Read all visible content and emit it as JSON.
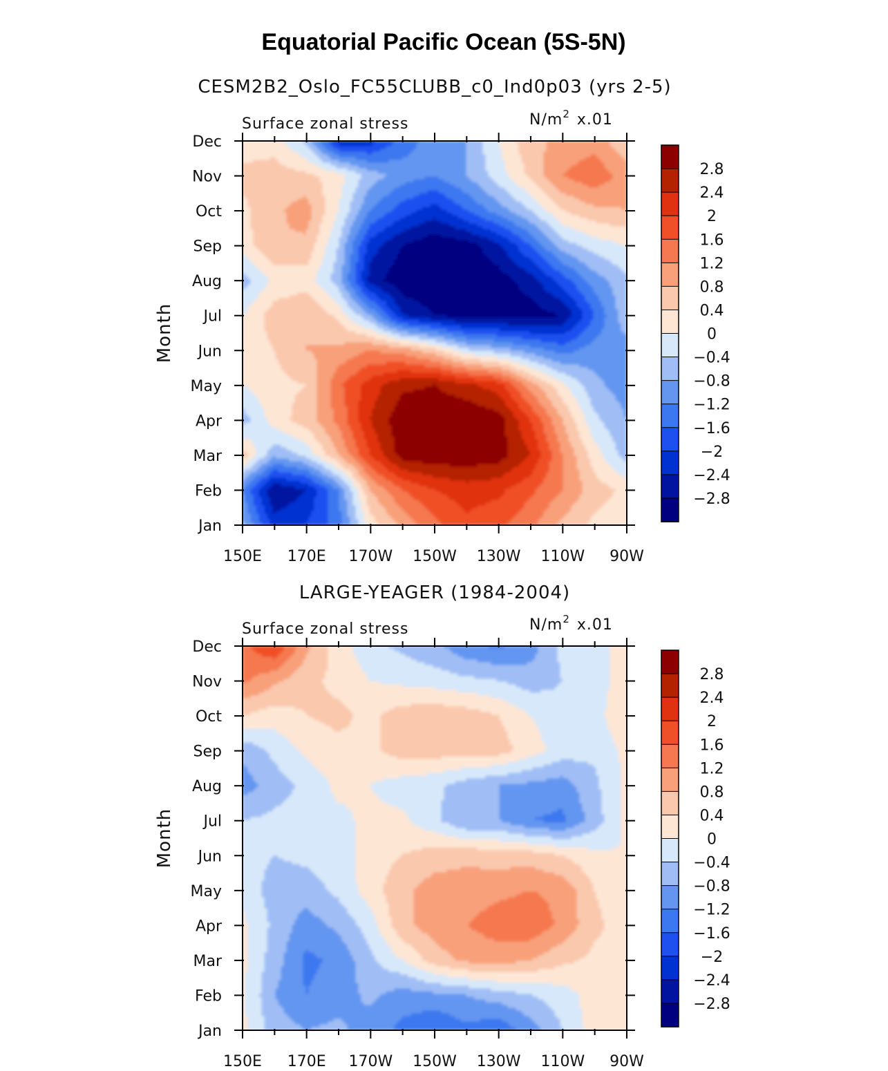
{
  "figure": {
    "title": "Equatorial Pacific Ocean (5S-5N)",
    "colors": [
      "#000080",
      "#0014a0",
      "#0032d2",
      "#1e50f0",
      "#3c78f0",
      "#6496f0",
      "#a0bef5",
      "#d7e8fa",
      "#fde6d4",
      "#fac8ad",
      "#f8a07a",
      "#f57850",
      "#f05028",
      "#e03210",
      "#b42300",
      "#8c0000"
    ],
    "levels": [
      -2.8,
      -2.4,
      -2,
      -1.6,
      -1.2,
      -0.8,
      -0.4,
      0,
      0.4,
      0.8,
      1.2,
      1.6,
      2,
      2.4,
      2.8
    ]
  },
  "chart_data": [
    {
      "type": "heatmap",
      "title": "CESM2B2_Oslo_FC55CLUBB_c0_Ind0p03 (yrs 2-5)",
      "left_label": "Surface zonal stress",
      "units": "N/m",
      "units_sup": "2",
      "units_scale": "x.01",
      "ylabel": "Month",
      "x": [
        "150E",
        "170E",
        "170W",
        "150W",
        "130W",
        "110W",
        "90W"
      ],
      "y": [
        "Jan",
        "Feb",
        "Mar",
        "Apr",
        "May",
        "Jun",
        "Jul",
        "Aug",
        "Sep",
        "Oct",
        "Nov",
        "Dec"
      ],
      "colorbar_labels": [
        "2.8",
        "2.4",
        "2",
        "1.6",
        "1.2",
        "0.8",
        "0.4",
        "0",
        "−0.4",
        "−0.8",
        "−1.2",
        "−1.6",
        "−2",
        "−2.4",
        "−2.8"
      ],
      "values": [
        [
          -0.7,
          -2.2,
          -2.0,
          -1.4,
          0.2,
          0.9,
          1.5,
          1.9,
          1.7,
          1.3,
          0.7,
          0.3,
          0.1
        ],
        [
          -1.2,
          -2.8,
          -2.4,
          -1.2,
          0.8,
          1.6,
          2.0,
          2.2,
          2.1,
          1.7,
          1.2,
          0.6,
          0.3
        ],
        [
          0.6,
          -0.7,
          -0.3,
          0.8,
          2.0,
          3.0,
          3.1,
          3.1,
          3.0,
          2.4,
          1.2,
          0.2,
          -0.6
        ],
        [
          -0.6,
          0.2,
          0.6,
          1.3,
          2.4,
          3.1,
          3.2,
          3.2,
          3.0,
          2.0,
          0.8,
          -0.3,
          -0.8
        ],
        [
          0.0,
          0.3,
          0.4,
          1.5,
          2.2,
          2.7,
          2.8,
          2.5,
          2.2,
          1.0,
          0.1,
          -0.7,
          -1.0
        ],
        [
          0.2,
          0.4,
          0.8,
          0.9,
          1.2,
          1.0,
          0.5,
          -0.3,
          -0.6,
          -1.0,
          -1.4,
          -1.0,
          -1.0
        ],
        [
          0.0,
          0.6,
          0.8,
          0.3,
          -0.8,
          -2.4,
          -2.8,
          -3.0,
          -3.0,
          -3.0,
          -2.8,
          -1.6,
          -0.5
        ],
        [
          -0.6,
          0.1,
          0.2,
          -0.6,
          -2.6,
          -3.1,
          -3.2,
          -3.1,
          -3.0,
          -2.6,
          -1.8,
          -1.0,
          -0.5
        ],
        [
          0.2,
          0.8,
          0.7,
          -0.4,
          -2.2,
          -2.8,
          -3.1,
          -3.0,
          -2.5,
          -1.6,
          -0.6,
          -0.2,
          0.0
        ],
        [
          0.3,
          0.7,
          1.0,
          0.0,
          -1.2,
          -1.8,
          -2.2,
          -1.6,
          -1.0,
          -0.4,
          0.4,
          0.7,
          0.8
        ],
        [
          0.5,
          0.6,
          0.5,
          0.2,
          -0.6,
          -1.0,
          -1.2,
          -0.8,
          -0.2,
          0.5,
          1.2,
          1.5,
          1.0
        ],
        [
          0.2,
          0.2,
          -0.5,
          -2.3,
          -2.2,
          -1.4,
          -1.0,
          -0.8,
          0.0,
          0.7,
          0.9,
          1.0,
          0.5
        ]
      ]
    },
    {
      "type": "heatmap",
      "title": "LARGE-YEAGER (1984-2004)",
      "left_label": "Surface zonal stress",
      "units": "N/m",
      "units_sup": "2",
      "units_scale": "x.01",
      "ylabel": "Month",
      "x": [
        "150E",
        "170E",
        "170W",
        "150W",
        "130W",
        "110W",
        "90W"
      ],
      "y": [
        "Jan",
        "Feb",
        "Mar",
        "Apr",
        "May",
        "Jun",
        "Jul",
        "Aug",
        "Sep",
        "Oct",
        "Nov",
        "Dec"
      ],
      "colorbar_labels": [
        "2.8",
        "2.4",
        "2",
        "1.6",
        "1.2",
        "0.8",
        "0.4",
        "0",
        "−0.4",
        "−0.8",
        "−1.2",
        "−1.6",
        "−2",
        "−2.4",
        "−2.8"
      ],
      "values": [
        [
          0.1,
          -0.6,
          -0.8,
          -0.7,
          -1.0,
          -1.3,
          -1.6,
          -1.3,
          -1.5,
          -1.0,
          -0.4,
          0.2,
          0.3
        ],
        [
          0.1,
          -0.8,
          -1.2,
          -1.0,
          -0.7,
          -1.0,
          -0.9,
          -0.8,
          -0.6,
          -0.4,
          -0.2,
          0.2,
          0.3
        ],
        [
          0.1,
          -0.6,
          -1.3,
          -1.1,
          -0.5,
          0.0,
          0.6,
          0.9,
          1.0,
          0.8,
          0.5,
          0.3,
          0.2
        ],
        [
          0.1,
          -0.5,
          -1.0,
          -0.7,
          -0.2,
          0.7,
          1.0,
          1.2,
          1.4,
          1.5,
          1.1,
          0.5,
          0.2
        ],
        [
          -0.1,
          -0.6,
          -0.6,
          -0.3,
          0.2,
          0.7,
          1.0,
          1.0,
          1.1,
          1.2,
          1.1,
          0.4,
          0.1
        ],
        [
          -0.2,
          -0.4,
          -0.3,
          -0.2,
          0.2,
          0.4,
          0.6,
          0.7,
          0.6,
          0.6,
          0.4,
          0.1,
          0.0
        ],
        [
          -0.4,
          -0.3,
          -0.2,
          -0.1,
          0.1,
          0.1,
          -0.3,
          -0.8,
          -0.8,
          -1.2,
          -1.3,
          -0.6,
          0.1
        ],
        [
          -1.0,
          -0.6,
          -0.3,
          0.1,
          0.0,
          -0.2,
          -0.3,
          -0.6,
          -0.8,
          -0.9,
          -1.0,
          -0.5,
          0.1
        ],
        [
          -0.7,
          -0.3,
          0.1,
          0.3,
          0.3,
          0.6,
          0.6,
          0.6,
          0.6,
          0.2,
          -0.2,
          -0.3,
          0.1
        ],
        [
          0.4,
          0.2,
          0.4,
          0.5,
          0.3,
          0.6,
          0.7,
          0.6,
          0.4,
          0.0,
          -0.3,
          -0.2,
          0.4
        ],
        [
          1.3,
          0.9,
          0.5,
          0.3,
          0.0,
          -0.1,
          -0.2,
          -0.3,
          -0.4,
          -0.6,
          -0.4,
          -0.2,
          0.2
        ],
        [
          1.5,
          2.0,
          0.9,
          0.2,
          -0.3,
          -0.5,
          -0.7,
          -1.1,
          -1.3,
          -1.0,
          -0.3,
          -0.2,
          0.2
        ]
      ]
    }
  ]
}
